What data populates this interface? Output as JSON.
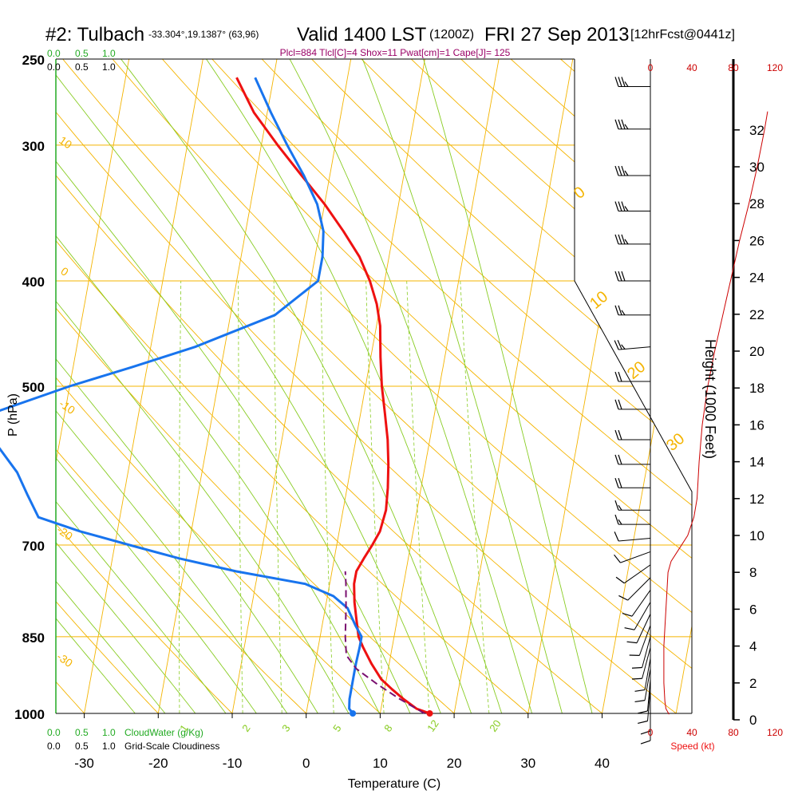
{
  "header": {
    "station": "#2: Tulbach",
    "coords": "-33.304°,19.1387° (63,96)",
    "valid": "Valid 1400 LST",
    "zulu": "(1200Z)",
    "date": "FRI 27 Sep 2013",
    "fcst": "[12hrFcst@0441z]",
    "indices": "Plcl=884 Tlcl[C]=4 Shox=11 Pwat[cm]=1 Cape[J]= 125"
  },
  "labels": {
    "cloudwater": "CloudWater (g/Kg)",
    "cloudiness": "Grid-Scale Cloudiness",
    "speed": "Speed (kt)",
    "height": "Height (1000 Feet)",
    "ylabel": "P (hPa)",
    "xlabel": "Temperature (C)"
  },
  "colors": {
    "temperature": "#ee1111",
    "dewpoint": "#1874ee",
    "parcel": "#7a1070",
    "isotherm": "#f4b400",
    "dry_adiabat": "#f4b400",
    "moist_adiabat": "#88cc22",
    "mixing_ratio": "#88cc22",
    "cloud_scale": "#22aa22",
    "wind_speed": "#cc0000"
  },
  "chart_data": {
    "type": "line",
    "skew_t": true,
    "xlim": [
      -34,
      36
    ],
    "x_ticks": [
      -30,
      -20,
      -10,
      0,
      10,
      20,
      30,
      40
    ],
    "pressure_ticks": [
      250,
      300,
      400,
      500,
      700,
      850,
      1000
    ],
    "pressure_range": [
      250,
      1000
    ],
    "series": [
      {
        "key": "temperature",
        "points": [
          [
            1000,
            16.7
          ],
          [
            990,
            14.8
          ],
          [
            970,
            12.8
          ],
          [
            950,
            11
          ],
          [
            930,
            9.3
          ],
          [
            900,
            7.6
          ],
          [
            870,
            6.1
          ],
          [
            850,
            5.2
          ],
          [
            820,
            4.5
          ],
          [
            790,
            3.8
          ],
          [
            760,
            3.3
          ],
          [
            740,
            3.3
          ],
          [
            720,
            4
          ],
          [
            700,
            4.8
          ],
          [
            680,
            5.5
          ],
          [
            650,
            5.8
          ],
          [
            620,
            5.5
          ],
          [
            590,
            5
          ],
          [
            560,
            4.3
          ],
          [
            530,
            3.3
          ],
          [
            500,
            2.2
          ],
          [
            470,
            1.3
          ],
          [
            440,
            0.5
          ],
          [
            420,
            -0.5
          ],
          [
            400,
            -2
          ],
          [
            380,
            -4
          ],
          [
            360,
            -6.8
          ],
          [
            340,
            -10
          ],
          [
            320,
            -13.8
          ],
          [
            300,
            -17.8
          ],
          [
            280,
            -21.8
          ],
          [
            260,
            -25
          ]
        ]
      },
      {
        "key": "dewpoint",
        "points": [
          [
            1000,
            6.3
          ],
          [
            990,
            5.7
          ],
          [
            970,
            5.5
          ],
          [
            950,
            5.5
          ],
          [
            920,
            5.5
          ],
          [
            900,
            5.5
          ],
          [
            870,
            5.6
          ],
          [
            850,
            5.6
          ],
          [
            830,
            4.5
          ],
          [
            800,
            3
          ],
          [
            780,
            0.8
          ],
          [
            760,
            -3.3
          ],
          [
            740,
            -13
          ],
          [
            720,
            -21
          ],
          [
            700,
            -28
          ],
          [
            680,
            -35
          ],
          [
            660,
            -41
          ],
          [
            630,
            -43
          ],
          [
            600,
            -45
          ],
          [
            570,
            -48
          ],
          [
            550,
            -51
          ],
          [
            530,
            -50
          ],
          [
            500,
            -40
          ],
          [
            480,
            -32
          ],
          [
            460,
            -24
          ],
          [
            430,
            -14
          ],
          [
            400,
            -9
          ],
          [
            380,
            -9
          ],
          [
            360,
            -9.5
          ],
          [
            340,
            -11
          ],
          [
            320,
            -13.5
          ],
          [
            300,
            -16.5
          ],
          [
            280,
            -19.5
          ],
          [
            260,
            -22.5
          ]
        ]
      },
      {
        "key": "parcel",
        "points": [
          [
            1000,
            16
          ],
          [
            970,
            12.3
          ],
          [
            940,
            8.9
          ],
          [
            910,
            5.7
          ],
          [
            884,
            4
          ],
          [
            850,
            3.4
          ],
          [
            800,
            2.8
          ],
          [
            760,
            2.2
          ],
          [
            740,
            1.8
          ]
        ]
      }
    ],
    "surface": {
      "temperature_c": 16.7,
      "dewpoint_c": 6.3
    },
    "isopleth_labels": {
      "dry_adiabat": [
        "10",
        "0",
        "-10",
        "-20",
        "-30"
      ],
      "moist_adiabat": [
        "0",
        "10",
        "20",
        "30"
      ],
      "mixing_ratio": [
        "1",
        "2",
        "3",
        "5",
        "8",
        "12",
        "20"
      ]
    },
    "wind_barbs": [
      {
        "p": 265,
        "dir": 270,
        "spd": 35
      },
      {
        "p": 290,
        "dir": 270,
        "spd": 35
      },
      {
        "p": 320,
        "dir": 270,
        "spd": 35
      },
      {
        "p": 345,
        "dir": 270,
        "spd": 35
      },
      {
        "p": 370,
        "dir": 270,
        "spd": 35
      },
      {
        "p": 400,
        "dir": 270,
        "spd": 30
      },
      {
        "p": 430,
        "dir": 270,
        "spd": 25
      },
      {
        "p": 460,
        "dir": 265,
        "spd": 25
      },
      {
        "p": 495,
        "dir": 270,
        "spd": 20
      },
      {
        "p": 525,
        "dir": 270,
        "spd": 20
      },
      {
        "p": 560,
        "dir": 270,
        "spd": 20
      },
      {
        "p": 590,
        "dir": 270,
        "spd": 20
      },
      {
        "p": 620,
        "dir": 270,
        "spd": 20
      },
      {
        "p": 650,
        "dir": 270,
        "spd": 15
      },
      {
        "p": 670,
        "dir": 270,
        "spd": 15
      },
      {
        "p": 690,
        "dir": 265,
        "spd": 10
      },
      {
        "p": 710,
        "dir": 250,
        "spd": 10
      },
      {
        "p": 730,
        "dir": 235,
        "spd": 10
      },
      {
        "p": 750,
        "dir": 225,
        "spd": 10
      },
      {
        "p": 770,
        "dir": 215,
        "spd": 10
      },
      {
        "p": 790,
        "dir": 210,
        "spd": 10
      },
      {
        "p": 810,
        "dir": 205,
        "spd": 10
      },
      {
        "p": 830,
        "dir": 200,
        "spd": 10
      },
      {
        "p": 850,
        "dir": 195,
        "spd": 10
      },
      {
        "p": 870,
        "dir": 195,
        "spd": 10
      },
      {
        "p": 890,
        "dir": 190,
        "spd": 10
      },
      {
        "p": 910,
        "dir": 190,
        "spd": 10
      },
      {
        "p": 930,
        "dir": 185,
        "spd": 10
      },
      {
        "p": 950,
        "dir": 185,
        "spd": 10
      },
      {
        "p": 970,
        "dir": 180,
        "spd": 10
      },
      {
        "p": 990,
        "dir": 180,
        "spd": 10
      }
    ],
    "speed_axis": {
      "ticks": [
        0,
        40,
        80,
        120
      ],
      "unit": "kt"
    },
    "height_axis": {
      "ticks": [
        0,
        2,
        4,
        6,
        8,
        10,
        12,
        14,
        16,
        18,
        20,
        22,
        24,
        26,
        28,
        30,
        32
      ],
      "unit": "1000 ft"
    },
    "speed_profile": [
      [
        0.3,
        18
      ],
      [
        0.6,
        15
      ],
      [
        1,
        14
      ],
      [
        2,
        13
      ],
      [
        3,
        13
      ],
      [
        4,
        13
      ],
      [
        5,
        14
      ],
      [
        6,
        15
      ],
      [
        7,
        16
      ],
      [
        8,
        17
      ],
      [
        8.6,
        20
      ],
      [
        9.3,
        28
      ],
      [
        10,
        36
      ],
      [
        11,
        42
      ],
      [
        12,
        45
      ],
      [
        14,
        47
      ],
      [
        16,
        50
      ],
      [
        18,
        55
      ],
      [
        20,
        62
      ],
      [
        22,
        70
      ],
      [
        24,
        78
      ],
      [
        26,
        86
      ],
      [
        28,
        95
      ],
      [
        30,
        103
      ],
      [
        32,
        110
      ],
      [
        33,
        113
      ]
    ],
    "cloud_scale_ticks": [
      "0.0",
      "0.5",
      "1.0"
    ]
  }
}
